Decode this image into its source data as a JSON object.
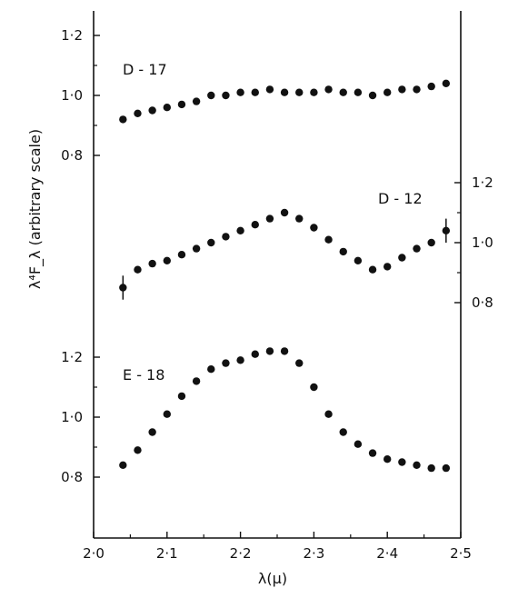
{
  "chart_data": {
    "type": "scatter",
    "xlabel": "λ(μ)",
    "ylabel": "λ⁴F_λ (arbitrary scale)",
    "xlim": [
      2.0,
      2.5
    ],
    "xticks": [
      2.0,
      2.1,
      2.2,
      2.3,
      2.4,
      2.5
    ],
    "xtick_labels": [
      "2·0",
      "2·1",
      "2·2",
      "2·3",
      "2·4",
      "2·5"
    ],
    "grid": false,
    "series": [
      {
        "name": "D - 17",
        "y_axis": "left-upper",
        "yticks": [
          0.8,
          1.0,
          1.2
        ],
        "ytick_labels": [
          "0·8",
          "1·0",
          "1·2"
        ],
        "x": [
          2.04,
          2.06,
          2.08,
          2.1,
          2.12,
          2.14,
          2.16,
          2.18,
          2.2,
          2.22,
          2.24,
          2.26,
          2.28,
          2.3,
          2.32,
          2.34,
          2.36,
          2.38,
          2.4,
          2.42,
          2.44,
          2.46,
          2.48
        ],
        "y": [
          0.92,
          0.94,
          0.95,
          0.96,
          0.97,
          0.98,
          1.0,
          1.0,
          1.01,
          1.01,
          1.02,
          1.01,
          1.01,
          1.01,
          1.02,
          1.01,
          1.01,
          1.0,
          1.01,
          1.02,
          1.02,
          1.03,
          1.04
        ]
      },
      {
        "name": "D - 12",
        "y_axis": "right",
        "yticks": [
          0.8,
          1.0,
          1.2
        ],
        "ytick_labels": [
          "0·8",
          "1·0",
          "1·2"
        ],
        "x": [
          2.04,
          2.06,
          2.08,
          2.1,
          2.12,
          2.14,
          2.16,
          2.18,
          2.2,
          2.22,
          2.24,
          2.26,
          2.28,
          2.3,
          2.32,
          2.34,
          2.36,
          2.38,
          2.4,
          2.42,
          2.44,
          2.46,
          2.48
        ],
        "y": [
          0.85,
          0.91,
          0.93,
          0.94,
          0.96,
          0.98,
          1.0,
          1.02,
          1.04,
          1.06,
          1.08,
          1.1,
          1.08,
          1.05,
          1.01,
          0.97,
          0.94,
          0.91,
          0.92,
          0.95,
          0.98,
          1.0,
          1.04
        ],
        "error_bars": [
          {
            "x": 2.04,
            "y": 0.85,
            "err": 0.04
          },
          {
            "x": 2.48,
            "y": 1.04,
            "err": 0.04
          }
        ]
      },
      {
        "name": "E - 18",
        "y_axis": "left-lower",
        "yticks": [
          0.8,
          1.0,
          1.2
        ],
        "ytick_labels": [
          "0·8",
          "1·0",
          "1·2"
        ],
        "x": [
          2.04,
          2.06,
          2.08,
          2.1,
          2.12,
          2.14,
          2.16,
          2.18,
          2.2,
          2.22,
          2.24,
          2.26,
          2.28,
          2.3,
          2.32,
          2.34,
          2.36,
          2.38,
          2.4,
          2.42,
          2.44,
          2.46,
          2.48
        ],
        "y": [
          0.84,
          0.89,
          0.95,
          1.01,
          1.07,
          1.12,
          1.16,
          1.18,
          1.19,
          1.21,
          1.22,
          1.22,
          1.18,
          1.1,
          1.01,
          0.95,
          0.91,
          0.88,
          0.86,
          0.85,
          0.84,
          0.83,
          0.83
        ]
      }
    ]
  }
}
